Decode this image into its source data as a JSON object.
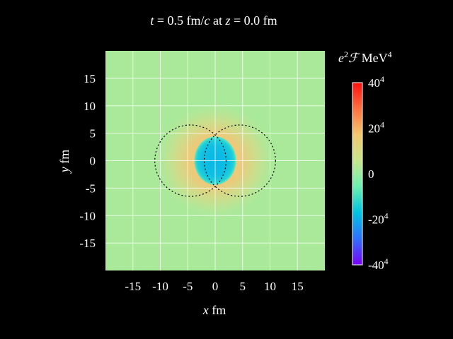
{
  "chart_data": {
    "type": "heatmap",
    "title": {
      "t_symbol": "t",
      "t_value": " = 0.5 fm/",
      "c_symbol": "c",
      "at_text": " at ",
      "z_symbol": "z",
      "z_value": " = 0.0 fm"
    },
    "xlabel": {
      "symbol": "x",
      "unit": " fm"
    },
    "ylabel": {
      "symbol": "y",
      "unit": " fm"
    },
    "xlim": [
      -20,
      20
    ],
    "ylim": [
      -20,
      20
    ],
    "x_ticks": [
      "-15",
      "-10",
      "-5",
      "0",
      "5",
      "10",
      "15"
    ],
    "x_tick_values": [
      -15,
      -10,
      -5,
      0,
      5,
      10,
      15
    ],
    "y_ticks": [
      "15",
      "10",
      "5",
      "0",
      "-5",
      "-10",
      "-15"
    ],
    "y_tick_values": [
      15,
      10,
      5,
      0,
      -5,
      -10,
      -15
    ],
    "grid": true,
    "colorbar": {
      "label": {
        "e": "e",
        "e_sup": "2",
        "F": "ℱ",
        "unit": " MeV",
        "unit_sup": "4"
      },
      "range": [
        -40,
        40
      ],
      "ticks": [
        {
          "value": 40,
          "base": "40",
          "sup": "4"
        },
        {
          "value": 20,
          "base": "20",
          "sup": "4"
        },
        {
          "value": 0,
          "base": "0",
          "sup": ""
        },
        {
          "value": -20,
          "base": "-20",
          "sup": "4"
        },
        {
          "value": -40,
          "base": "-40",
          "sup": "4"
        }
      ],
      "colors": [
        "#7a00ff",
        "#2f70ff",
        "#00c3e0",
        "#6cf0b0",
        "#c6e58e",
        "#f2c870",
        "#ff7040",
        "#ff1010"
      ]
    },
    "field": {
      "background_value": 2,
      "ring_peak_value": 12,
      "ring_center": [
        0,
        0
      ],
      "ring_radius": 7.5,
      "ring_width": 4.5,
      "core_value": -18,
      "core_center": [
        0,
        0
      ],
      "core_radii": [
        3.8,
        4.4
      ]
    },
    "nuclei": [
      {
        "center": [
          -4.5,
          0
        ],
        "radius": 6.5
      },
      {
        "center": [
          4.5,
          0
        ],
        "radius": 6.5
      }
    ]
  }
}
